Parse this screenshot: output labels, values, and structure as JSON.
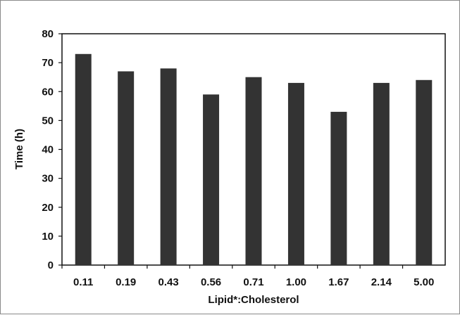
{
  "chart_data": {
    "type": "bar",
    "title": "",
    "xlabel": "Lipid*:Cholesterol",
    "ylabel": "Time (h)",
    "ylim": [
      0,
      80
    ],
    "yticks": [
      0,
      10,
      20,
      30,
      40,
      50,
      60,
      70,
      80
    ],
    "grid": false,
    "legend": "none",
    "categories": [
      "0.11",
      "0.19",
      "0.43",
      "0.56",
      "0.71",
      "1.00",
      "1.67",
      "2.14",
      "5.00"
    ],
    "values": [
      73,
      67,
      68,
      59,
      65,
      63,
      53,
      63,
      64
    ],
    "bar_color": "#333333"
  }
}
